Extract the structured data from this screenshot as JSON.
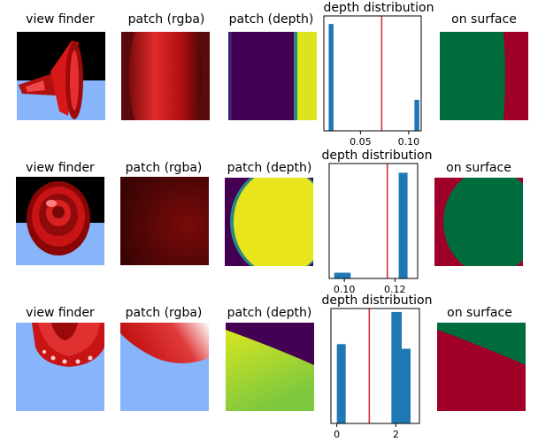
{
  "rows": [
    {
      "titles": {
        "view_finder": "view finder",
        "patch_rgba": "patch (rgba)",
        "patch_depth": "patch (depth)",
        "depth_distribution": "depth distribution",
        "on_surface": "on surface"
      }
    },
    {
      "titles": {
        "view_finder": "view finder",
        "patch_rgba": "patch (rgba)",
        "patch_depth": "patch (depth)",
        "depth_distribution": "depth distribution",
        "on_surface": "on surface"
      }
    },
    {
      "titles": {
        "view_finder": "view finder",
        "patch_rgba": "patch (rgba)",
        "patch_depth": "patch (depth)",
        "depth_distribution": "depth distribution",
        "on_surface": "on surface"
      }
    }
  ],
  "colors": {
    "bar": "#1f77b4",
    "threshold_line": "#d62728",
    "surface_on": "#006b3c",
    "surface_off": "#a00028",
    "depth_low": "#440154",
    "depth_high": "#e0e01a",
    "sky": "#87b4fb"
  },
  "chart_data": [
    {
      "type": "bar",
      "title": "depth distribution",
      "xlim": [
        0.012,
        0.113
      ],
      "ylim": [
        0,
        1
      ],
      "xticks": [
        0.05,
        0.1
      ],
      "xtick_labels": [
        "0.05",
        "0.10"
      ],
      "bars": [
        {
          "x": 0.017,
          "width": 0.005,
          "height": 0.93
        },
        {
          "x": 0.106,
          "width": 0.005,
          "height": 0.27
        }
      ],
      "threshold": 0.072
    },
    {
      "type": "bar",
      "title": "depth distribution",
      "xlim": [
        0.094,
        0.129
      ],
      "ylim": [
        0,
        1
      ],
      "xticks": [
        0.1,
        0.12
      ],
      "xtick_labels": [
        "0.10",
        "0.12"
      ],
      "bars": [
        {
          "x": 0.096,
          "width": 0.0065,
          "height": 0.05
        },
        {
          "x": 0.1215,
          "width": 0.0035,
          "height": 0.92
        }
      ],
      "threshold": 0.117
    },
    {
      "type": "bar",
      "title": "depth distribution",
      "xlim": [
        -0.2,
        2.8
      ],
      "ylim": [
        0,
        1
      ],
      "xticks": [
        0,
        2
      ],
      "xtick_labels": [
        "0",
        "2"
      ],
      "bars": [
        {
          "x": 0.0,
          "width": 0.3,
          "height": 0.69
        },
        {
          "x": 1.85,
          "width": 0.35,
          "height": 0.97
        },
        {
          "x": 2.2,
          "width": 0.3,
          "height": 0.65
        }
      ],
      "threshold": 1.1
    }
  ]
}
